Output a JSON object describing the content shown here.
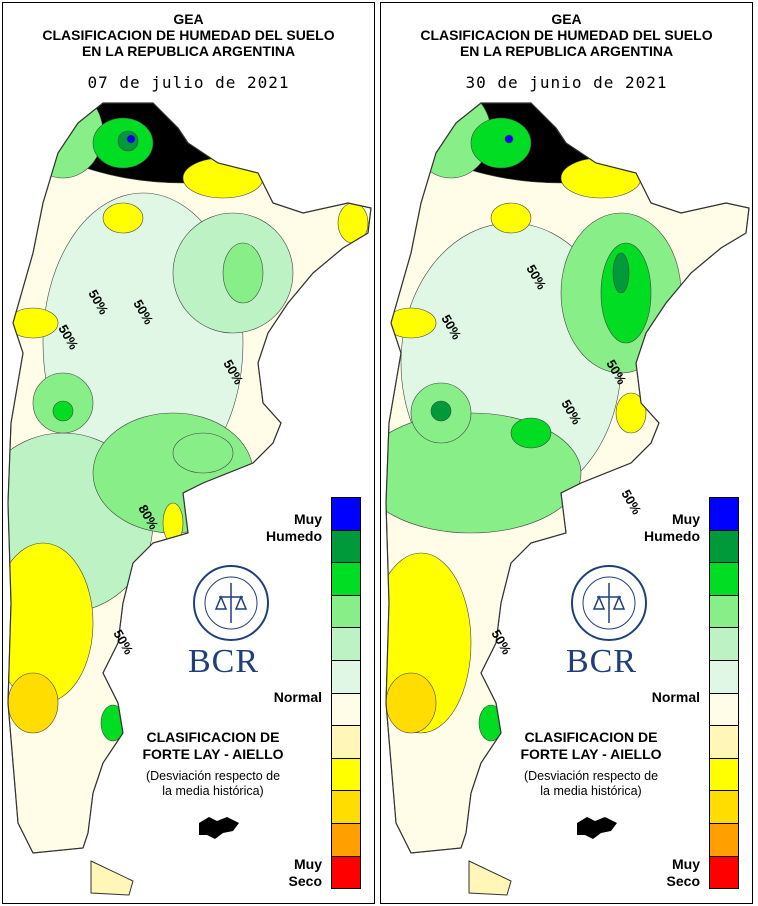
{
  "panels": [
    {
      "title": [
        "GEA",
        "CLASIFICACION DE HUMEDAD DEL SUELO",
        "EN LA REPUBLICA ARGENTINA"
      ],
      "date": "07 de julio de 2021",
      "contour_labels": [
        "50%",
        "50%",
        "50%",
        "50%",
        "50%",
        "80%",
        "50%"
      ]
    },
    {
      "title": [
        "GEA",
        "CLASIFICACION DE HUMEDAD DEL SUELO",
        "EN LA REPUBLICA ARGENTINA"
      ],
      "date": "30 de junio de 2021",
      "contour_labels": [
        "50%",
        "50%",
        "50%",
        "50%",
        "50%",
        "50%",
        "50%"
      ]
    }
  ],
  "legend": {
    "top_label": [
      "Muy",
      "Humedo"
    ],
    "mid_label": "Normal",
    "bottom_label": [
      "Muy",
      "Seco"
    ],
    "colors": [
      "#0000ff",
      "#009a3a",
      "#00dd22",
      "#88ee88",
      "#bdf3c4",
      "#dff7e4",
      "#fffde8",
      "#fff6b8",
      "#ffff00",
      "#ffdd00",
      "#ffa000",
      "#ff0000"
    ]
  },
  "classification": {
    "line1": "CLASIFICACION DE",
    "line2": "FORTE LAY - AIELLO",
    "note1": "(Desviación respecto de",
    "note2": "la media histórica)"
  },
  "logo": {
    "text": "BCR",
    "seal_text": "BOLSA DE COMERCIO DE ROSARIO"
  }
}
